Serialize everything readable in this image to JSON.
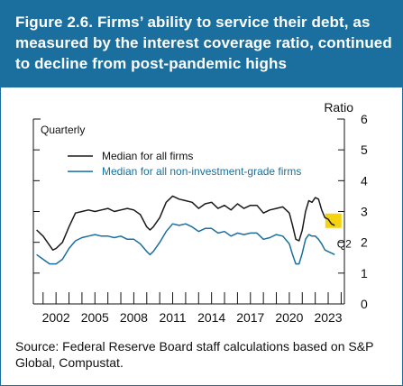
{
  "title": "Figure 2.6. Firms’ ability to service their debt, as measured by the interest coverage ratio, continued to decline from post-pandemic highs",
  "source": "Source: Federal Reserve Board staff calculations based on S&P Global, Compustat.",
  "colors": {
    "accent": "#1a6f9e",
    "series_all": "#1a1a1a",
    "series_nig": "#1a6f9e",
    "highlight": "#f5d40f"
  },
  "chart_data": {
    "type": "line",
    "frequency_label": "Quarterly",
    "ylabel": "Ratio",
    "ylim": [
      0,
      6
    ],
    "yticks": [
      0,
      1,
      2,
      3,
      4,
      5,
      6
    ],
    "xlim": [
      2000.25,
      2024.25
    ],
    "xticks": [
      2002,
      2005,
      2008,
      2011,
      2014,
      2017,
      2020,
      2023
    ],
    "xtick_labels": [
      "2002",
      "2005",
      "2008",
      "2011",
      "2014",
      "2017",
      "2020",
      "2023"
    ],
    "highlight_label": "Q2",
    "highlight_x": 2023.4,
    "series": [
      {
        "name": "Median for all firms",
        "x": [
          2000.5,
          2001.0,
          2001.5,
          2001.75,
          2002.0,
          2002.5,
          2003.0,
          2003.5,
          2004.0,
          2004.5,
          2005.0,
          2005.5,
          2006.0,
          2006.5,
          2007.0,
          2007.5,
          2008.0,
          2008.5,
          2009.0,
          2009.25,
          2009.5,
          2010.0,
          2010.5,
          2011.0,
          2011.5,
          2012.0,
          2012.5,
          2013.0,
          2013.5,
          2014.0,
          2014.5,
          2015.0,
          2015.5,
          2016.0,
          2016.5,
          2017.0,
          2017.5,
          2018.0,
          2018.5,
          2019.0,
          2019.5,
          2020.0,
          2020.25,
          2020.5,
          2020.75,
          2021.0,
          2021.25,
          2021.5,
          2021.75,
          2022.0,
          2022.25,
          2022.5,
          2022.75,
          2023.0,
          2023.25,
          2023.5
        ],
        "values": [
          2.4,
          2.2,
          1.9,
          1.75,
          1.8,
          2.0,
          2.5,
          2.95,
          3.0,
          3.05,
          3.0,
          3.05,
          3.1,
          3.0,
          3.05,
          3.1,
          3.05,
          2.9,
          2.5,
          2.4,
          2.5,
          2.8,
          3.3,
          3.5,
          3.4,
          3.35,
          3.3,
          3.1,
          3.25,
          3.3,
          3.1,
          3.2,
          3.05,
          3.25,
          3.1,
          3.2,
          3.2,
          2.95,
          3.05,
          3.1,
          3.15,
          2.95,
          2.55,
          2.1,
          2.05,
          2.4,
          3.0,
          3.35,
          3.3,
          3.45,
          3.4,
          3.05,
          2.8,
          2.75,
          2.6,
          2.55
        ]
      },
      {
        "name": "Median for all non-investment-grade firms",
        "x": [
          2000.5,
          2001.0,
          2001.5,
          2002.0,
          2002.5,
          2003.0,
          2003.5,
          2004.0,
          2004.5,
          2005.0,
          2005.5,
          2006.0,
          2006.5,
          2007.0,
          2007.5,
          2008.0,
          2008.5,
          2009.0,
          2009.25,
          2009.5,
          2010.0,
          2010.5,
          2011.0,
          2011.5,
          2012.0,
          2012.5,
          2013.0,
          2013.5,
          2014.0,
          2014.5,
          2015.0,
          2015.5,
          2016.0,
          2016.5,
          2017.0,
          2017.5,
          2018.0,
          2018.5,
          2019.0,
          2019.5,
          2020.0,
          2020.25,
          2020.5,
          2020.75,
          2021.0,
          2021.25,
          2021.5,
          2021.75,
          2022.0,
          2022.25,
          2022.5,
          2022.75,
          2023.0,
          2023.25,
          2023.5
        ],
        "values": [
          1.6,
          1.45,
          1.3,
          1.3,
          1.45,
          1.8,
          2.05,
          2.15,
          2.2,
          2.25,
          2.2,
          2.2,
          2.15,
          2.2,
          2.1,
          2.1,
          1.95,
          1.7,
          1.6,
          1.7,
          2.0,
          2.35,
          2.6,
          2.55,
          2.6,
          2.5,
          2.35,
          2.45,
          2.45,
          2.3,
          2.35,
          2.2,
          2.3,
          2.25,
          2.3,
          2.3,
          2.1,
          2.15,
          2.25,
          2.2,
          1.95,
          1.6,
          1.3,
          1.3,
          1.65,
          2.1,
          2.25,
          2.2,
          2.2,
          2.1,
          1.95,
          1.75,
          1.7,
          1.65,
          1.6
        ]
      }
    ]
  }
}
